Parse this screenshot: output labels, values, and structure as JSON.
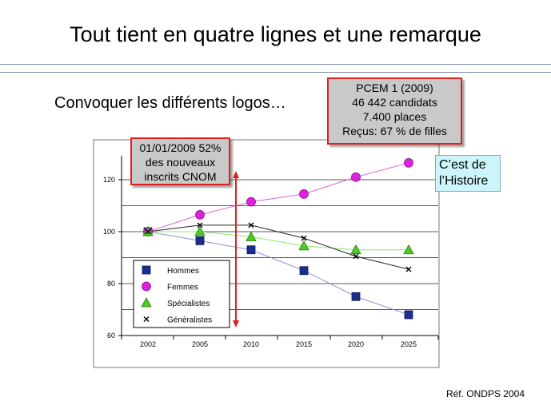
{
  "slide": {
    "title": "Tout tient en quatre lignes et une remarque",
    "subtitle": "Convoquer les différents logos…",
    "reference": "Réf. ONDPS 2004"
  },
  "callouts": {
    "pcem": [
      "PCEM 1 (2009)",
      "46 442 candidats",
      "7.400 places",
      "Reçus: 67 % de filles"
    ],
    "cnom": [
      "01/01/2009 52%",
      "des nouveaux",
      "inscrits CNOM"
    ],
    "histoire": [
      "C’est de",
      "l’Histoire"
    ]
  },
  "colors": {
    "hommes": "#1c2e8c",
    "femmes": "#dd22dd",
    "specialistes": "#4ccc22",
    "generalistes": "#000000",
    "callout_border": "#e0201b",
    "callout_fill": "#c9c9c9",
    "histoire_fill": "#ccf5fb"
  },
  "chart_data": {
    "type": "line",
    "categories": [
      "2002",
      "2005",
      "2010",
      "2015",
      "2020",
      "2025"
    ],
    "ylim": [
      60,
      120
    ],
    "yticks": [
      "60",
      "80",
      "100",
      "120"
    ],
    "grid": true,
    "legend_position": "bottom-left",
    "series": [
      {
        "name": "Hommes",
        "marker": "square",
        "values": [
          100,
          96.5,
          93,
          85,
          75,
          68
        ]
      },
      {
        "name": "Femmes",
        "marker": "circle",
        "values": [
          100,
          106.5,
          111.5,
          114.5,
          121,
          126.5
        ]
      },
      {
        "name": "Spécialistes",
        "marker": "triangle",
        "values": [
          100,
          100,
          98,
          94.5,
          93,
          93
        ]
      },
      {
        "name": "Généralistes",
        "marker": "x",
        "values": [
          100,
          102.5,
          102.5,
          97.5,
          90.5,
          85.5
        ]
      }
    ]
  }
}
